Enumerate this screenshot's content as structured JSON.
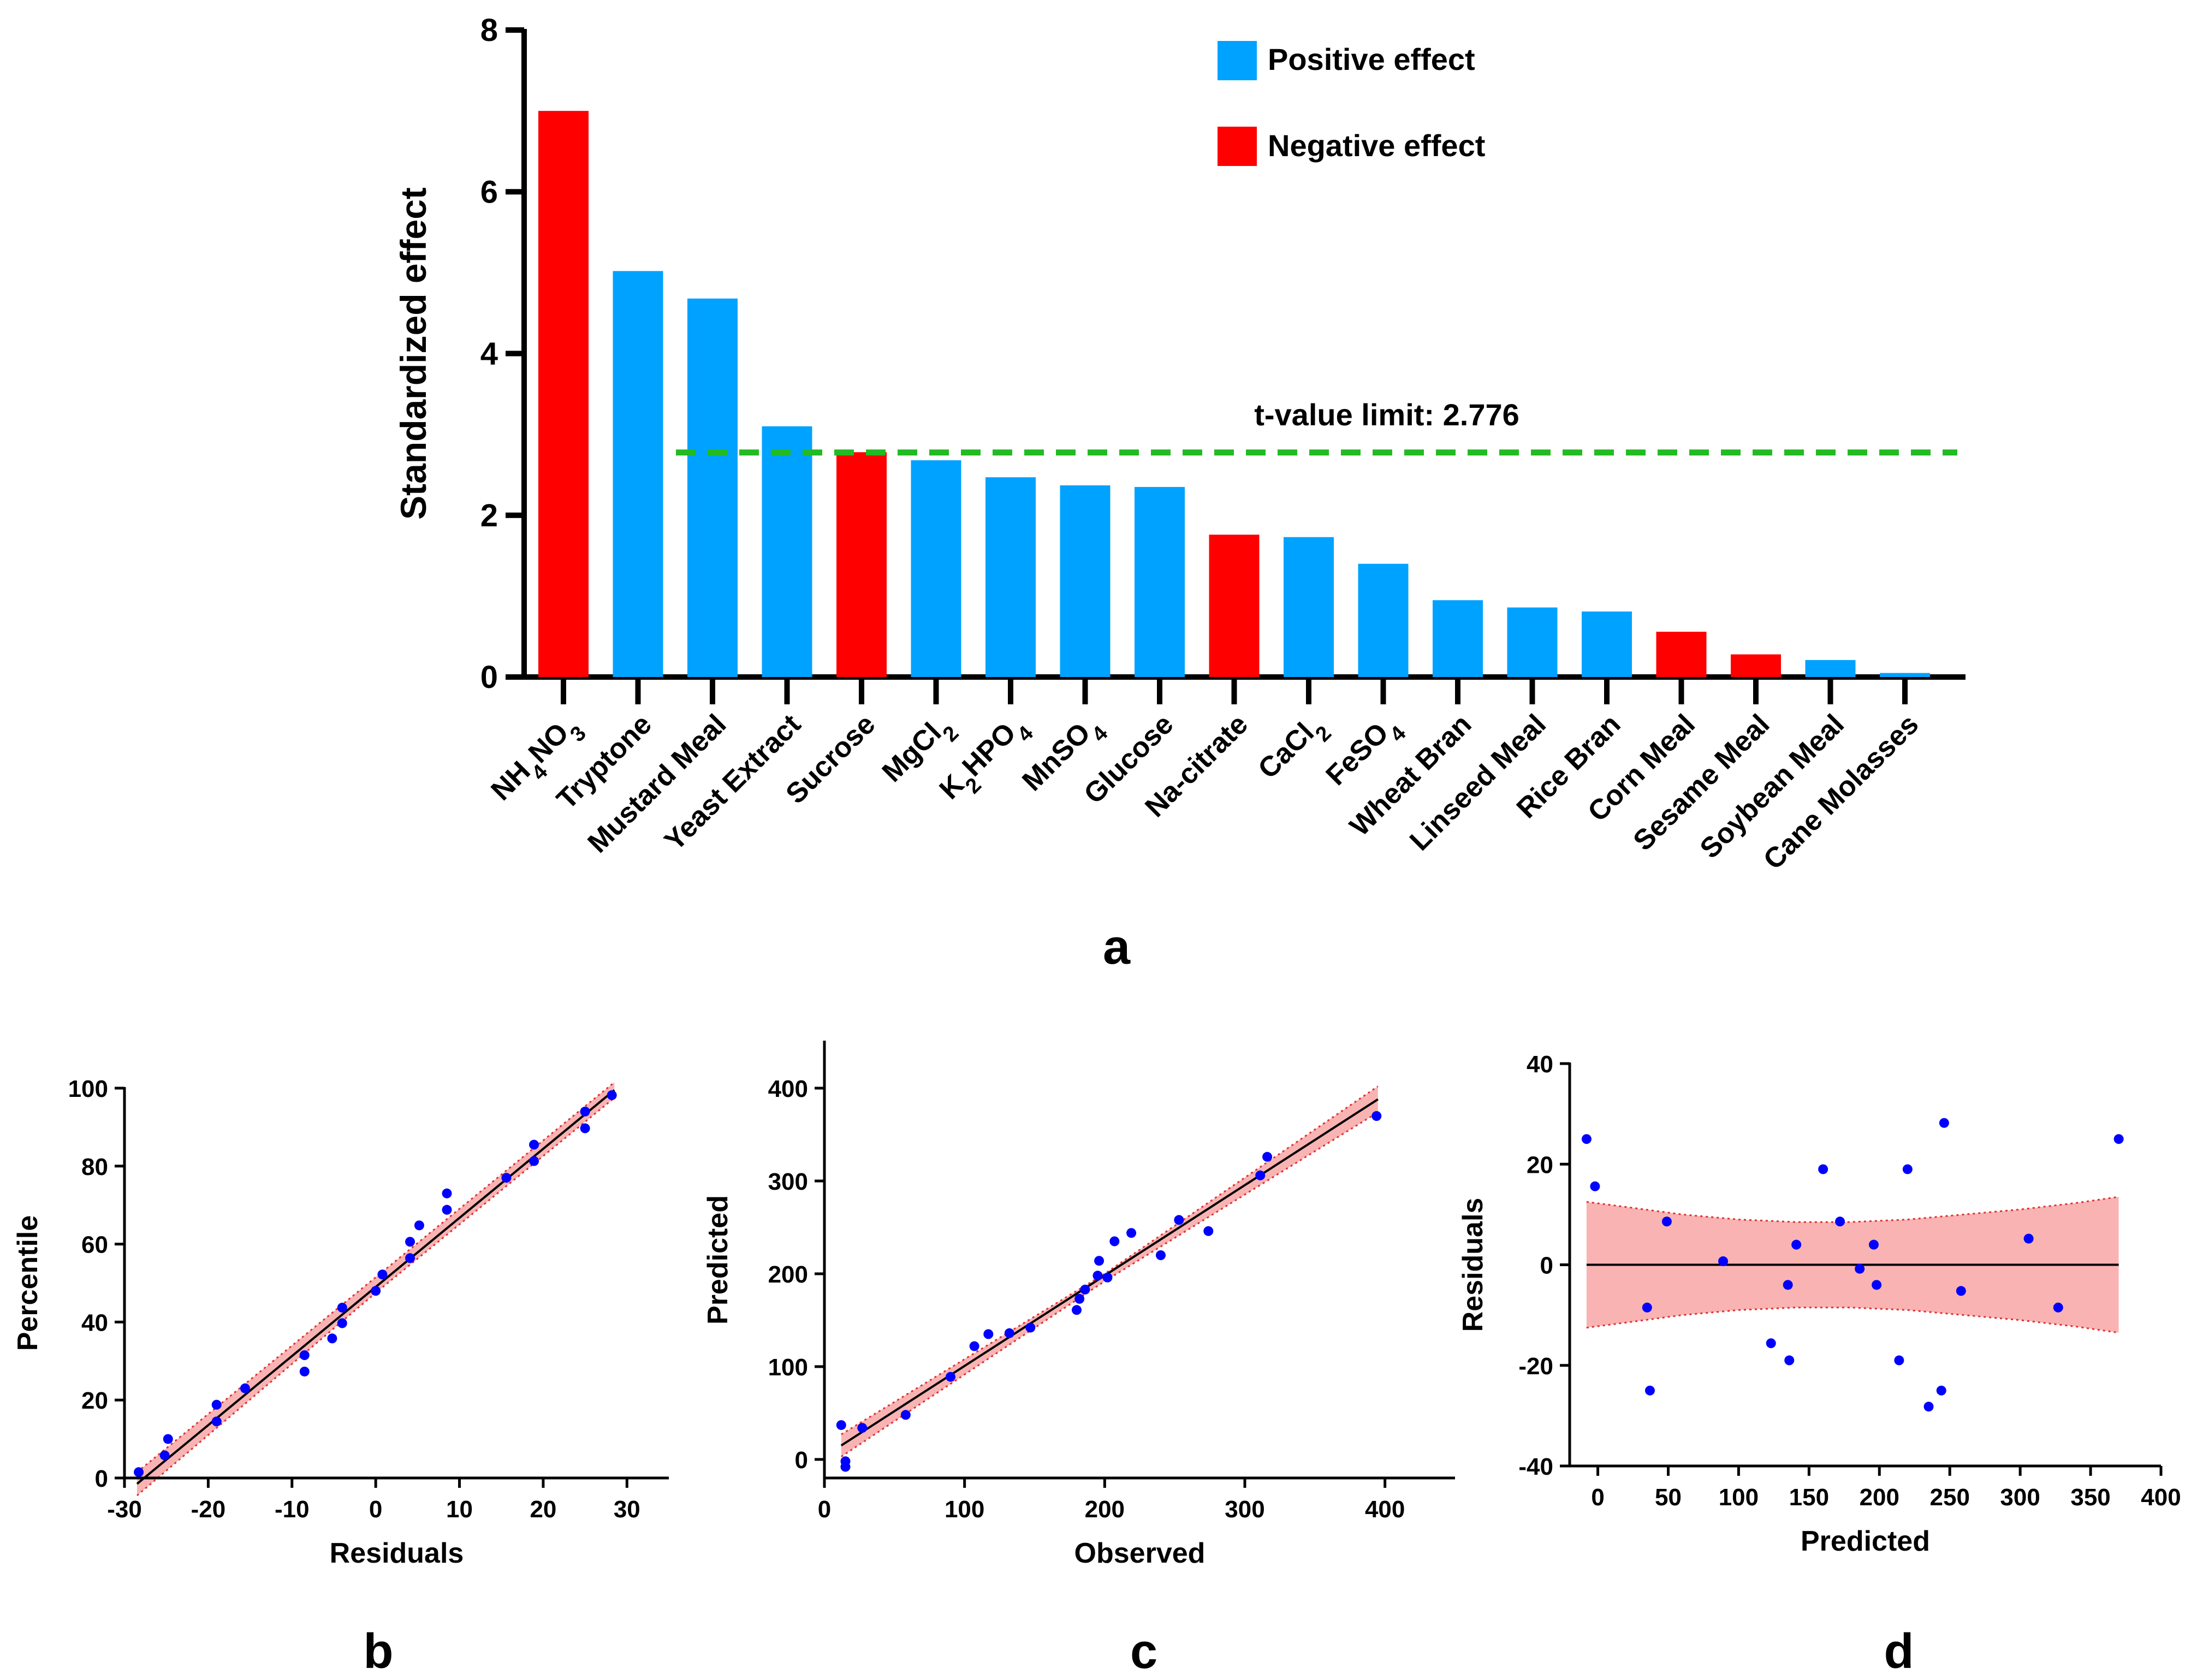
{
  "colors": {
    "positive": "#00A2FF",
    "negative": "#FF0000",
    "threshold": "#22BB22",
    "points": "#0000FF",
    "band": "#F9B3B3",
    "band_edge": "#E03030"
  },
  "panels": {
    "a": "a",
    "b": "b",
    "c": "c",
    "d": "d"
  },
  "chart_data": [
    {
      "id": "a",
      "type": "bar",
      "title": "",
      "ylabel": "Standardized effect",
      "xlabel": "",
      "ylim": [
        0,
        8
      ],
      "yticks": [
        "0",
        "2",
        "4",
        "6",
        "8"
      ],
      "categories": [
        "NH4NO3",
        "Tryptone",
        "Mustard Meal",
        "Yeast Extract",
        "Sucrose",
        "MgCl2",
        "K2HPO4",
        "MnSO4",
        "Glucose",
        "Na-citrate",
        "CaCl2",
        "FeSO4",
        "Wheat Bran",
        "Linseed Meal",
        "Rice Bran",
        "Corn Meal",
        "Sesame Meal",
        "Soybean Meal",
        "Cane Molasses"
      ],
      "values": [
        7.0,
        5.02,
        4.68,
        3.1,
        2.78,
        2.68,
        2.47,
        2.37,
        2.35,
        1.76,
        1.73,
        1.4,
        0.95,
        0.86,
        0.81,
        0.56,
        0.28,
        0.21,
        0.05
      ],
      "effects": [
        "negative",
        "positive",
        "positive",
        "positive",
        "negative",
        "positive",
        "positive",
        "positive",
        "positive",
        "negative",
        "positive",
        "positive",
        "positive",
        "positive",
        "positive",
        "negative",
        "negative",
        "positive",
        "positive"
      ],
      "legend": {
        "positive": "Positive effect",
        "negative": "Negative effect"
      },
      "threshold": {
        "value": 2.776,
        "label": "t-value limit: 2.776"
      }
    },
    {
      "id": "b",
      "type": "scatter",
      "xlabel": "Residuals",
      "ylabel": "Percentile",
      "xlim": [
        -30,
        35
      ],
      "ylim": [
        0,
        100
      ],
      "xticks": [
        "-30",
        "-20",
        "-10",
        "0",
        "10",
        "20",
        "30"
      ],
      "yticks": [
        "0",
        "20",
        "40",
        "60",
        "80",
        "100"
      ],
      "points": [
        [
          -28.3,
          1.5
        ],
        [
          -25.2,
          5.8
        ],
        [
          -24.8,
          10.0
        ],
        [
          -19.0,
          14.5
        ],
        [
          -19.0,
          18.8
        ],
        [
          -15.6,
          23.0
        ],
        [
          -8.5,
          27.3
        ],
        [
          -8.5,
          31.5
        ],
        [
          -5.2,
          35.8
        ],
        [
          -4.0,
          39.7
        ],
        [
          -4.0,
          43.7
        ],
        [
          0.0,
          48.0
        ],
        [
          0.8,
          52.2
        ],
        [
          4.1,
          56.4
        ],
        [
          4.1,
          60.6
        ],
        [
          5.2,
          64.8
        ],
        [
          8.5,
          68.8
        ],
        [
          8.5,
          73.0
        ],
        [
          15.6,
          77.0
        ],
        [
          18.9,
          81.3
        ],
        [
          18.9,
          85.5
        ],
        [
          25.0,
          89.7
        ],
        [
          25.0,
          94.0
        ],
        [
          28.2,
          98.2
        ]
      ],
      "fit": {
        "x": [
          -28.5,
          28.5
        ],
        "y": [
          -1.5,
          99.5
        ]
      },
      "band": {
        "x": [
          -28.5,
          0,
          28.5
        ],
        "upper": [
          1.5,
          51.5,
          101.5
        ],
        "lower": [
          -4.5,
          47.5,
          97.5
        ]
      }
    },
    {
      "id": "c",
      "type": "scatter",
      "xlabel": "Observed",
      "ylabel": "Predicted",
      "xlim": [
        0,
        450
      ],
      "ylim": [
        -20,
        450
      ],
      "xticks": [
        "0",
        "100",
        "200",
        "300",
        "400"
      ],
      "yticks": [
        "0",
        "100",
        "200",
        "300",
        "400"
      ],
      "points": [
        [
          12,
          37
        ],
        [
          15,
          -2
        ],
        [
          15,
          -8
        ],
        [
          27,
          34
        ],
        [
          58,
          48
        ],
        [
          90,
          89
        ],
        [
          107,
          122
        ],
        [
          117,
          135
        ],
        [
          132,
          136
        ],
        [
          147,
          142
        ],
        [
          180,
          161
        ],
        [
          182,
          173
        ],
        [
          186,
          183
        ],
        [
          195,
          198
        ],
        [
          196,
          214
        ],
        [
          202,
          196
        ],
        [
          207,
          235
        ],
        [
          219,
          244
        ],
        [
          240,
          220
        ],
        [
          253,
          258
        ],
        [
          274,
          246
        ],
        [
          311,
          306
        ],
        [
          316,
          326
        ],
        [
          394,
          370
        ]
      ],
      "fit": {
        "x": [
          12,
          395
        ],
        "y": [
          15,
          388
        ]
      },
      "band": {
        "x": [
          12,
          200,
          395
        ],
        "upper": [
          27,
          200,
          402
        ],
        "lower": [
          3,
          192,
          374
        ]
      }
    },
    {
      "id": "d",
      "type": "scatter",
      "xlabel": "Predicted",
      "ylabel": "Residuals",
      "xlim": [
        -20,
        400
      ],
      "ylim": [
        -40,
        40
      ],
      "xticks": [
        "0",
        "50",
        "100",
        "150",
        "200",
        "250",
        "300",
        "350",
        "400"
      ],
      "yticks": [
        "-40",
        "-20",
        "0",
        "20",
        "40"
      ],
      "points": [
        [
          -8,
          25
        ],
        [
          -2,
          15.6
        ],
        [
          35,
          -8.5
        ],
        [
          37,
          -25
        ],
        [
          49,
          8.6
        ],
        [
          89,
          0.7
        ],
        [
          123,
          -15.6
        ],
        [
          135,
          -4
        ],
        [
          136,
          -19
        ],
        [
          141,
          4
        ],
        [
          160,
          19
        ],
        [
          172,
          8.6
        ],
        [
          186,
          -0.8
        ],
        [
          196,
          4
        ],
        [
          198,
          -4
        ],
        [
          214,
          -19
        ],
        [
          220,
          19
        ],
        [
          235,
          -28.2
        ],
        [
          244,
          -25
        ],
        [
          246,
          28.2
        ],
        [
          258,
          -5.2
        ],
        [
          306,
          5.2
        ],
        [
          327,
          -8.5
        ],
        [
          370,
          25
        ]
      ],
      "fit": {
        "x": [
          -8,
          370
        ],
        "y": [
          0,
          0
        ]
      },
      "band": {
        "x": [
          -8,
          20,
          60,
          100,
          140,
          180,
          220,
          260,
          300,
          340,
          370
        ],
        "upper": [
          12.5,
          11.5,
          10.0,
          9.0,
          8.5,
          8.5,
          9.0,
          10.0,
          11.0,
          12.3,
          13.5
        ],
        "lower": [
          -12.5,
          -11.5,
          -10.0,
          -9.0,
          -8.5,
          -8.5,
          -9.0,
          -10.0,
          -11.0,
          -12.3,
          -13.5
        ]
      }
    }
  ]
}
